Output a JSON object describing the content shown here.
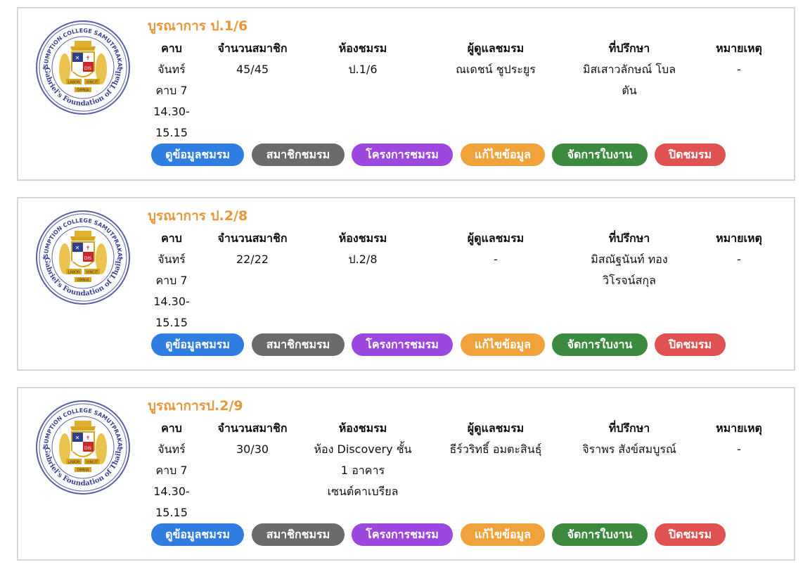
{
  "logo": {
    "ring_top": "ASSUMPTION COLLEGE SAMUTPRAKARN",
    "ring_bottom": "St.Gabriel's Foundation of Thailand",
    "motto_left": "LABOR",
    "motto_right": "VINCIT",
    "motto_bottom": "OMNIA",
    "shield_text": "DIS",
    "colors": {
      "ring": "#5a5fa8",
      "gold": "#d9a520",
      "red": "#c8282a",
      "navy": "#2c3f8c"
    }
  },
  "headers": {
    "period": "คาบ",
    "members": "จำนวนสมาชิก",
    "room": "ห้องชมรม",
    "supervisor": "ผู้ดูแลชมรม",
    "advisor": "ที่ปรึกษา",
    "note": "หมายเหตุ"
  },
  "buttons": {
    "view": "ดูข้อมูลชมรม",
    "members": "สมาชิกชมรม",
    "projects": "โครงการชมรม",
    "edit": "แก้ไขข้อมูล",
    "worksheet": "จัดการใบงาน",
    "close": "ปิดชมรม"
  },
  "clubs": [
    {
      "title": "บูรณาการ ป.1/6",
      "period_lines": [
        "จันทร์",
        "คาบ 7",
        "14.30-",
        "15.15"
      ],
      "members": "45/45",
      "room_lines": [
        "ป.1/6"
      ],
      "supervisor_lines": [
        "ณเดชน์ ชูประยูร"
      ],
      "advisor_lines": [
        "มิสเสาวลักษณ์ โบล",
        "ตัน"
      ],
      "note": "-"
    },
    {
      "title": "บูรณาการ ป.2/8",
      "period_lines": [
        "จันทร์",
        "คาบ 7",
        "14.30-",
        "15.15"
      ],
      "members": "22/22",
      "room_lines": [
        "ป.2/8"
      ],
      "supervisor_lines": [
        "-"
      ],
      "advisor_lines": [
        "มิสณัฐนันท์ ทอง",
        "วิโรจน์สกุล"
      ],
      "note": "-"
    },
    {
      "title": "บูรณาการป.2/9",
      "period_lines": [
        "จันทร์",
        "คาบ 7",
        "14.30-",
        "15.15"
      ],
      "members": "30/30",
      "room_lines": [
        "ห้อง Discovery ชั้น",
        "1 อาคาร",
        "เซนต์คาเบรียล"
      ],
      "supervisor_lines": [
        "ธีร์วริทธิ์ อมตะสินธุ์"
      ],
      "advisor_lines": [
        "จิราพร สังข์สมบูรณ์"
      ],
      "note": "-"
    }
  ]
}
